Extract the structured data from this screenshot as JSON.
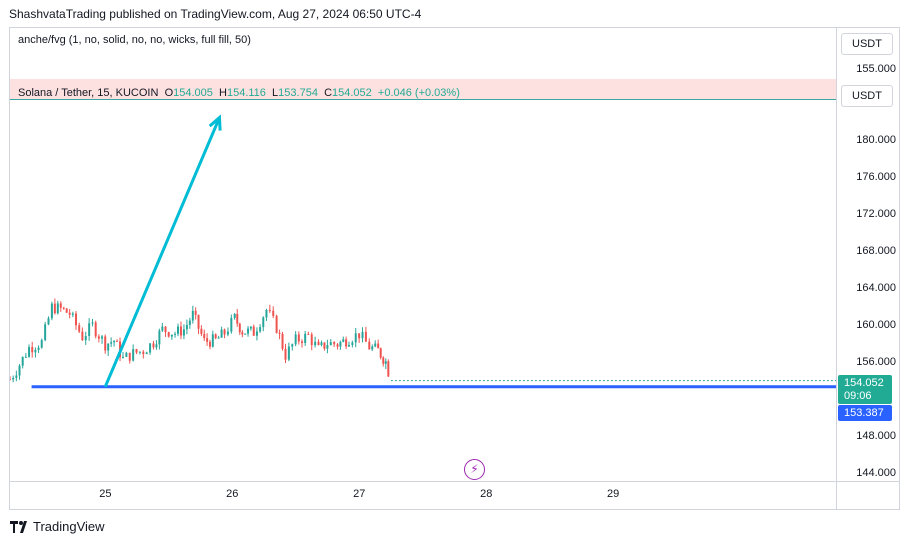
{
  "header": {
    "published": "ShashvataTrading published on TradingView.com, Aug 27, 2024 06:50 UTC-4"
  },
  "indicator": {
    "legend": "anche/fvg (1, no, solid, no, no, wicks, full fill, 50)",
    "price_label": "155.000",
    "unit": "USDT"
  },
  "main": {
    "symbol": "Solana / Tether, 15, KUCOIN",
    "o_label": "O",
    "o_value": "154.005",
    "h_label": "H",
    "h_value": "154.116",
    "l_label": "L",
    "l_value": "153.754",
    "c_label": "C",
    "c_value": "154.052",
    "change": "+0.046 (+0.03%)",
    "unit": "USDT",
    "last_price": "154.052",
    "countdown": "09:06",
    "level_price": "153.387"
  },
  "colors": {
    "up": "#26a69a",
    "down": "#ef5350",
    "level_line": "#2962ff",
    "arrow": "#00bcd4",
    "pane_band": "#fde0e0"
  },
  "chart_data": {
    "type": "candlestick",
    "symbol": "SOL/USDT",
    "interval": "15",
    "y_ticks": [
      "180.000",
      "176.000",
      "172.000",
      "168.000",
      "164.000",
      "160.000",
      "156.000",
      "148.000",
      "144.000"
    ],
    "x_ticks": [
      "25",
      "26",
      "27",
      "28",
      "29"
    ],
    "ylim": [
      143.2,
      184.4
    ],
    "xlim": [
      24.25,
      30.0
    ],
    "horizontal_level": 153.387,
    "arrow": {
      "from": [
        25.0,
        153.387
      ],
      "to": [
        25.9,
        182.5
      ]
    },
    "series": [
      {
        "x": 24.25,
        "y": 154.2
      },
      {
        "x": 24.3,
        "y": 155.2
      },
      {
        "x": 24.4,
        "y": 157.6
      },
      {
        "x": 24.5,
        "y": 158.2
      },
      {
        "x": 24.58,
        "y": 162.0
      },
      {
        "x": 24.65,
        "y": 161.8
      },
      {
        "x": 24.72,
        "y": 161.3
      },
      {
        "x": 24.82,
        "y": 158.8
      },
      {
        "x": 24.9,
        "y": 160.0
      },
      {
        "x": 25.0,
        "y": 158.0
      },
      {
        "x": 25.07,
        "y": 158.4
      },
      {
        "x": 25.14,
        "y": 156.4
      },
      {
        "x": 25.22,
        "y": 157.0
      },
      {
        "x": 25.3,
        "y": 157.3
      },
      {
        "x": 25.38,
        "y": 158.2
      },
      {
        "x": 25.45,
        "y": 159.6
      },
      {
        "x": 25.55,
        "y": 159.2
      },
      {
        "x": 25.62,
        "y": 159.6
      },
      {
        "x": 25.69,
        "y": 161.2
      },
      {
        "x": 25.78,
        "y": 158.3
      },
      {
        "x": 25.87,
        "y": 158.4
      },
      {
        "x": 25.94,
        "y": 159.2
      },
      {
        "x": 26.02,
        "y": 160.8
      },
      {
        "x": 26.08,
        "y": 159.4
      },
      {
        "x": 26.17,
        "y": 159.3
      },
      {
        "x": 26.27,
        "y": 161.7
      },
      {
        "x": 26.35,
        "y": 159.8
      },
      {
        "x": 26.42,
        "y": 156.8
      },
      {
        "x": 26.5,
        "y": 158.4
      },
      {
        "x": 26.6,
        "y": 158.9
      },
      {
        "x": 26.68,
        "y": 157.4
      },
      {
        "x": 26.75,
        "y": 158.1
      },
      {
        "x": 26.83,
        "y": 158.0
      },
      {
        "x": 26.92,
        "y": 158.6
      },
      {
        "x": 27.0,
        "y": 159.1
      },
      {
        "x": 27.08,
        "y": 157.7
      },
      {
        "x": 27.15,
        "y": 157.3
      },
      {
        "x": 27.21,
        "y": 156.1
      },
      {
        "x": 27.25,
        "y": 154.052
      }
    ]
  }
}
